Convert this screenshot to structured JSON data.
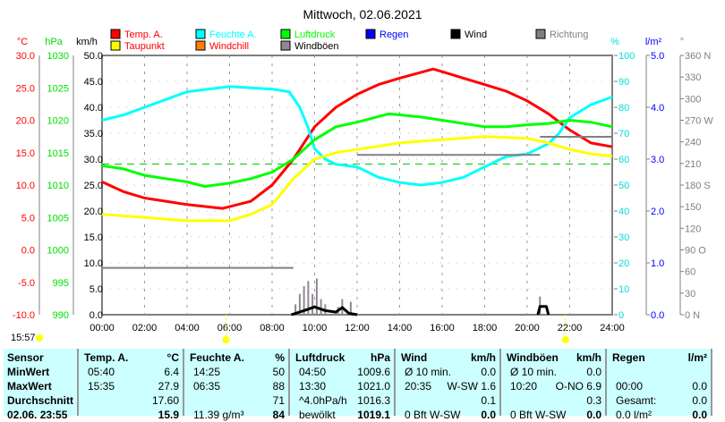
{
  "chart_data": {
    "type": "line",
    "title": "Mittwoch, 02.06.2021",
    "x_ticks": [
      "00:00",
      "02:00",
      "04:00",
      "06:00",
      "08:00",
      "10:00",
      "12:00",
      "14:00",
      "16:00",
      "18:00",
      "20:00",
      "22:00",
      "24:00"
    ],
    "axes": {
      "temp": {
        "label": "°C",
        "ticks": [
          "30.0",
          "25.0",
          "20.0",
          "15.0",
          "10.0",
          "5.0",
          "0.0",
          "-5.0",
          "-10.0"
        ],
        "range": [
          -10,
          30
        ]
      },
      "pressure": {
        "label": "hPa",
        "ticks": [
          "1030",
          "1025",
          "1020",
          "1015",
          "1010",
          "1005",
          "1000",
          "995",
          "990"
        ],
        "range": [
          990,
          1030
        ]
      },
      "wind": {
        "label": "km/h",
        "ticks": [
          "50.0",
          "45.0",
          "40.0",
          "35.0",
          "30.0",
          "25.0",
          "20.0",
          "15.0",
          "10.0",
          "5.0",
          "0.0"
        ],
        "range": [
          0,
          50
        ]
      },
      "humidity": {
        "label": "%",
        "ticks": [
          "100",
          "90",
          "80",
          "70",
          "60",
          "50",
          "40",
          "30",
          "20",
          "10",
          "0"
        ],
        "range": [
          0,
          100
        ]
      },
      "rain": {
        "label": "l/m²",
        "ticks": [
          "5.0",
          "4.0",
          "3.0",
          "2.0",
          "1.0",
          "0.0"
        ],
        "range": [
          0,
          5
        ]
      },
      "direction": {
        "label": "°",
        "ticks": [
          "360 N",
          "330",
          "300",
          "270 W",
          "240",
          "210",
          "180 S",
          "150",
          "120",
          "90  O",
          "60",
          "30",
          "0    N"
        ],
        "range": [
          0,
          360
        ]
      }
    },
    "legend": [
      {
        "name": "Temp. A.",
        "color": "#ff0000"
      },
      {
        "name": "Feuchte A.",
        "color": "#00ffff"
      },
      {
        "name": "Luftdruck",
        "color": "#00ff00"
      },
      {
        "name": "Regen",
        "color": "#0000ff"
      },
      {
        "name": "Wind",
        "color": "#000000"
      },
      {
        "name": "Richtung",
        "color": "#808080"
      },
      {
        "name": "Taupunkt",
        "color": "#ffff00"
      },
      {
        "name": "Windchill",
        "color": "#ff8000"
      },
      {
        "name": "Windböen",
        "color": "#908890"
      }
    ],
    "series": [
      {
        "name": "Temp. A.",
        "axis": "temp",
        "color": "#ff0000",
        "points": [
          [
            0,
            10.5
          ],
          [
            1,
            9
          ],
          [
            2,
            8
          ],
          [
            3,
            7.5
          ],
          [
            4,
            7
          ],
          [
            5.67,
            6.4
          ],
          [
            7,
            7.5
          ],
          [
            8,
            10
          ],
          [
            9,
            14
          ],
          [
            10,
            19
          ],
          [
            11,
            22
          ],
          [
            12,
            24
          ],
          [
            13,
            25.5
          ],
          [
            14,
            26.5
          ],
          [
            15.58,
            27.9
          ],
          [
            17,
            26.5
          ],
          [
            18,
            25.5
          ],
          [
            19,
            24.5
          ],
          [
            20,
            23
          ],
          [
            21,
            21
          ],
          [
            22,
            18.5
          ],
          [
            23,
            16.5
          ],
          [
            24,
            15.9
          ]
        ]
      },
      {
        "name": "Feuchte A.",
        "axis": "humidity",
        "color": "#00ffff",
        "points": [
          [
            0,
            75
          ],
          [
            1,
            77
          ],
          [
            2,
            80
          ],
          [
            3,
            83
          ],
          [
            4,
            86
          ],
          [
            5,
            87
          ],
          [
            6,
            88
          ],
          [
            8,
            87
          ],
          [
            8.8,
            86
          ],
          [
            9.3,
            80
          ],
          [
            9.7,
            72
          ],
          [
            10,
            64
          ],
          [
            10.5,
            60
          ],
          [
            11,
            58
          ],
          [
            12,
            57
          ],
          [
            13,
            53
          ],
          [
            14,
            51
          ],
          [
            15,
            50
          ],
          [
            16,
            51
          ],
          [
            17,
            53
          ],
          [
            18,
            57
          ],
          [
            19,
            61
          ],
          [
            20,
            62
          ],
          [
            20.5,
            64
          ],
          [
            21,
            66
          ],
          [
            21.5,
            70
          ],
          [
            22,
            76
          ],
          [
            23,
            81
          ],
          [
            24,
            84
          ]
        ]
      },
      {
        "name": "Luftdruck",
        "axis": "pressure",
        "color": "#00ff00",
        "points": [
          [
            0,
            1013
          ],
          [
            1,
            1012.5
          ],
          [
            2,
            1011.5
          ],
          [
            3,
            1011
          ],
          [
            4,
            1010.5
          ],
          [
            4.83,
            1009.8
          ],
          [
            6,
            1010.3
          ],
          [
            7,
            1011
          ],
          [
            8,
            1012
          ],
          [
            9,
            1014
          ],
          [
            10,
            1017
          ],
          [
            11,
            1019
          ],
          [
            12,
            1019.7
          ],
          [
            13.5,
            1021
          ],
          [
            15,
            1020.5
          ],
          [
            16,
            1020
          ],
          [
            17,
            1019.5
          ],
          [
            18,
            1019
          ],
          [
            19,
            1019
          ],
          [
            20,
            1019.3
          ],
          [
            21,
            1019.5
          ],
          [
            22,
            1020
          ],
          [
            23,
            1019.7
          ],
          [
            24,
            1019
          ]
        ]
      },
      {
        "name": "Taupunkt",
        "axis": "temp",
        "color": "#ffff00",
        "points": [
          [
            0,
            5.5
          ],
          [
            2,
            5
          ],
          [
            4,
            4.5
          ],
          [
            6,
            4.5
          ],
          [
            7,
            5.5
          ],
          [
            8,
            7
          ],
          [
            9,
            11
          ],
          [
            10,
            14
          ],
          [
            11,
            15
          ],
          [
            12,
            15.5
          ],
          [
            13,
            16
          ],
          [
            14,
            16.5
          ],
          [
            16,
            17
          ],
          [
            18,
            17.5
          ],
          [
            20,
            17.2
          ],
          [
            21,
            16.5
          ],
          [
            22,
            15.5
          ],
          [
            23,
            14.8
          ],
          [
            24,
            14.5
          ]
        ]
      },
      {
        "name": "Richtung",
        "axis": "direction",
        "color": "#808080",
        "points": [
          [
            0,
            65
          ],
          [
            9,
            65
          ],
          null,
          [
            12,
            222
          ],
          [
            20.6,
            222
          ],
          null,
          [
            20.6,
            247
          ],
          [
            24,
            247
          ]
        ]
      },
      {
        "name": "Windböen",
        "axis": "wind",
        "color": "#908890",
        "bars": [
          [
            9.1,
            2
          ],
          [
            9.3,
            4
          ],
          [
            9.5,
            5.5
          ],
          [
            9.7,
            6.5
          ],
          [
            9.9,
            4
          ],
          [
            10.1,
            7
          ],
          [
            10.3,
            3
          ],
          [
            10.5,
            2
          ],
          [
            11.1,
            1.5
          ],
          [
            11.3,
            3
          ],
          [
            11.7,
            2.5
          ],
          [
            20.6,
            3.5
          ]
        ]
      },
      {
        "name": "Wind",
        "axis": "wind",
        "color": "#000000",
        "points": [
          [
            8.9,
            0
          ],
          [
            9.5,
            0.8
          ],
          [
            10,
            1.5
          ],
          [
            10.5,
            0.8
          ],
          [
            11,
            0.5
          ],
          [
            11.3,
            1.4
          ],
          [
            11.6,
            0.3
          ],
          [
            12,
            0
          ],
          null,
          [
            20.5,
            0
          ],
          [
            20.6,
            1.6
          ],
          [
            20.9,
            1.6
          ],
          [
            21,
            0
          ]
        ]
      }
    ],
    "reference_line": {
      "axis": "pressure",
      "value": 1013.25,
      "color": "#00cc00"
    }
  },
  "sun": {
    "time": "15:57"
  },
  "table": {
    "rows": [
      "Sensor",
      "MinWert",
      "MaxWert",
      "Durchschnitt",
      "02.06. 23:55"
    ],
    "cols": [
      {
        "h": "Temp. A.",
        "u": "°C",
        "c": [
          [
            "05:40",
            "6.4"
          ],
          [
            "15:35",
            "27.9"
          ],
          [
            "",
            "17.60"
          ],
          [
            "",
            "15.9"
          ]
        ]
      },
      {
        "h": "Feuchte A.",
        "u": "%",
        "c": [
          [
            "14:25",
            "50"
          ],
          [
            "06:35",
            "88"
          ],
          [
            "",
            "71"
          ],
          [
            "11.39 g/m³",
            "84"
          ]
        ]
      },
      {
        "h": "Luftdruck",
        "u": "hPa",
        "c": [
          [
            "04:50",
            "1009.6"
          ],
          [
            "13:30",
            "1021.0"
          ],
          [
            "^4.0hPa/h",
            "1016.3"
          ],
          [
            "bewölkt",
            "1019.1"
          ]
        ]
      },
      {
        "h": "Wind",
        "u": "km/h",
        "c": [
          [
            "Ø 10 min.",
            "0.0"
          ],
          [
            "20:35",
            "W-SW 1.6"
          ],
          [
            "",
            "0.1"
          ],
          [
            "0 Bft W-SW",
            "0.0"
          ]
        ]
      },
      {
        "h": "Windböen",
        "u": "km/h",
        "c": [
          [
            "Ø 10 min.",
            "0.0"
          ],
          [
            "10:20",
            "O-NO 6.9"
          ],
          [
            "",
            "0.3"
          ],
          [
            "0 Bft W-SW",
            "0.0"
          ]
        ]
      },
      {
        "h": "Regen",
        "u": "l/m²",
        "c": [
          [
            "",
            ""
          ],
          [
            "00:00",
            "0.0"
          ],
          [
            "Gesamt:",
            "0.0"
          ],
          [
            "0.0 l/m²",
            "0.0"
          ]
        ]
      }
    ]
  }
}
